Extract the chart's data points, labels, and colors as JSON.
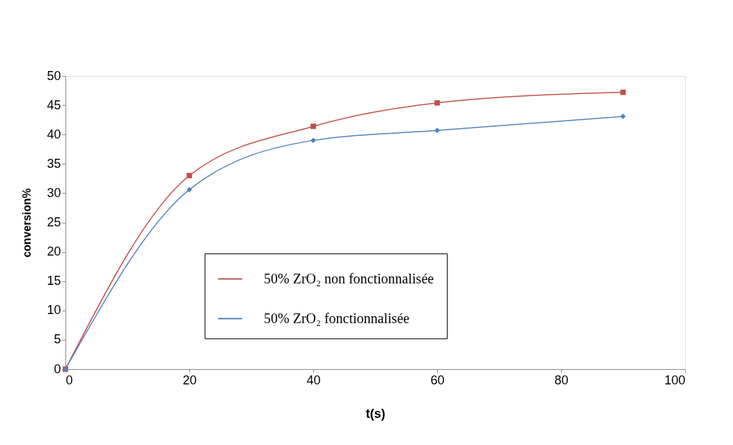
{
  "chart_data": {
    "type": "line",
    "xlabel": "t(s)",
    "ylabel": "conversion%",
    "x": [
      0,
      20,
      40,
      60,
      90
    ],
    "series": [
      {
        "name": "50% ZrO₂ non fonctionnalisée",
        "color": "#c0504d",
        "values": [
          0,
          33,
          41.4,
          45.4,
          47.2
        ],
        "marker": "square"
      },
      {
        "name": "50% ZrO₂ fonctionnalisée",
        "color": "#4f81bd",
        "values": [
          0,
          30.6,
          39,
          40.7,
          43.1
        ],
        "marker": "diamond"
      }
    ],
    "xlim": [
      0,
      100
    ],
    "xticks": [
      0,
      20,
      40,
      60,
      80,
      100
    ],
    "ylim": [
      0,
      50
    ],
    "yticks": [
      0,
      5,
      10,
      15,
      20,
      25,
      30,
      35,
      40,
      45,
      50
    ],
    "grid": false,
    "legend": "bottom",
    "line_style": "solid"
  }
}
